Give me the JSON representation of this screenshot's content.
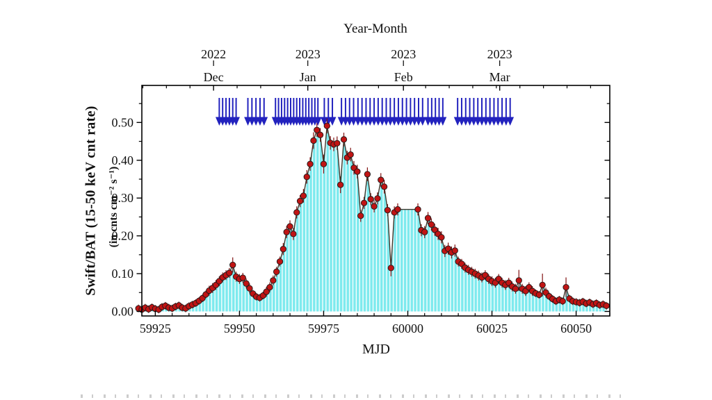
{
  "chart_data": {
    "type": "line",
    "title_top": "Year-Month",
    "xlabel": "MJD",
    "ylabel_line1": "Swift/BAT (15-50 keV cnt rate)",
    "ylabel_line2": "(in cnts cm⁻² s⁻¹)",
    "xlim": [
      59921,
      60060
    ],
    "ylim": [
      -0.012,
      0.598
    ],
    "grid": "off",
    "legend": "none",
    "x_major_ticks": [
      {
        "v": 59925,
        "label": "59925"
      },
      {
        "v": 59950,
        "label": "59950"
      },
      {
        "v": 59975,
        "label": "59975"
      },
      {
        "v": 60000,
        "label": "60000"
      },
      {
        "v": 60025,
        "label": "60025"
      },
      {
        "v": 60050,
        "label": "60050"
      }
    ],
    "x_minor_step": 5,
    "y_major_ticks": [
      {
        "v": 0.0,
        "label": "0.00"
      },
      {
        "v": 0.1,
        "label": "0.10"
      },
      {
        "v": 0.2,
        "label": "0.20"
      },
      {
        "v": 0.3,
        "label": "0.30"
      },
      {
        "v": 0.4,
        "label": "0.40"
      },
      {
        "v": 0.5,
        "label": "0.50"
      }
    ],
    "y_minor_step": 0.05,
    "top_axis_ticks": [
      {
        "mjd": 59942.3,
        "year": "2022",
        "month": "Dec"
      },
      {
        "mjd": 59970.3,
        "year": "2023",
        "month": "Jan"
      },
      {
        "mjd": 59998.7,
        "year": "2023",
        "month": "Feb"
      },
      {
        "mjd": 60027.3,
        "year": "2023",
        "month": "Mar"
      }
    ],
    "top_minor_anchor": 59921.3,
    "top_minor_step": 7,
    "colors": {
      "area": "#7eeaee",
      "stripe_gap": "#ffffff",
      "line": "#3c362b",
      "point_fill": "#c01414",
      "point_edge": "#1a1a1a",
      "error_bar": "#801111",
      "arrow": "#2222be",
      "axis": "#000000"
    },
    "series": {
      "name": "Swift/BAT daily count rate",
      "mjd": [
        59920,
        59921,
        59922,
        59923,
        59924,
        59925,
        59926,
        59927,
        59928,
        59929,
        59930,
        59931,
        59932,
        59933,
        59934,
        59935,
        59936,
        59937,
        59938,
        59939,
        59940,
        59941,
        59942,
        59943,
        59944,
        59945,
        59946,
        59947,
        59948,
        59949,
        59950,
        59951,
        59952,
        59953,
        59954,
        59955,
        59956,
        59957,
        59958,
        59959,
        59960,
        59961,
        59962,
        59963,
        59964,
        59965,
        59966,
        59967,
        59968,
        59969,
        59970,
        59971,
        59972,
        59973,
        59974,
        59975,
        59976,
        59977,
        59978,
        59979,
        59980,
        59981,
        59982,
        59983,
        59984,
        59985,
        59986,
        59987,
        59988,
        59989,
        59990,
        59991,
        59992,
        59993,
        59994,
        59995,
        59996,
        59997,
        60003,
        60004,
        60005,
        60006,
        60007,
        60008,
        60009,
        60010,
        60011,
        60012,
        60013,
        60014,
        60015,
        60016,
        60017,
        60018,
        60019,
        60020,
        60021,
        60022,
        60023,
        60024,
        60025,
        60026,
        60027,
        60028,
        60029,
        60030,
        60031,
        60032,
        60033,
        60034,
        60035,
        60036,
        60037,
        60038,
        60039,
        60040,
        60041,
        60042,
        60043,
        60044,
        60045,
        60046,
        60047,
        60048,
        60049,
        60050,
        60051,
        60052,
        60053,
        60054,
        60055,
        60056,
        60057,
        60058,
        60059
      ],
      "rate": [
        0.008,
        0.005,
        0.01,
        0.006,
        0.011,
        0.007,
        0.005,
        0.012,
        0.015,
        0.01,
        0.008,
        0.013,
        0.016,
        0.01,
        0.008,
        0.014,
        0.018,
        0.022,
        0.028,
        0.035,
        0.045,
        0.055,
        0.062,
        0.07,
        0.08,
        0.09,
        0.096,
        0.102,
        0.123,
        0.092,
        0.086,
        0.089,
        0.074,
        0.061,
        0.047,
        0.039,
        0.036,
        0.042,
        0.052,
        0.064,
        0.082,
        0.105,
        0.132,
        0.165,
        0.21,
        0.225,
        0.205,
        0.262,
        0.292,
        0.306,
        0.356,
        0.39,
        0.452,
        0.48,
        0.467,
        0.39,
        0.491,
        0.446,
        0.442,
        0.445,
        0.335,
        0.455,
        0.407,
        0.415,
        0.38,
        0.37,
        0.253,
        0.287,
        0.363,
        0.297,
        0.278,
        0.299,
        0.348,
        0.33,
        0.268,
        0.115,
        0.262,
        0.27,
        0.27,
        0.215,
        0.21,
        0.247,
        0.23,
        0.216,
        0.205,
        0.196,
        0.16,
        0.166,
        0.156,
        0.161,
        0.132,
        0.126,
        0.116,
        0.11,
        0.105,
        0.1,
        0.095,
        0.09,
        0.096,
        0.086,
        0.08,
        0.076,
        0.086,
        0.076,
        0.07,
        0.076,
        0.066,
        0.06,
        0.082,
        0.06,
        0.054,
        0.064,
        0.054,
        0.048,
        0.044,
        0.07,
        0.05,
        0.04,
        0.033,
        0.027,
        0.031,
        0.027,
        0.064,
        0.034,
        0.027,
        0.025,
        0.023,
        0.026,
        0.021,
        0.024,
        0.019,
        0.022,
        0.017,
        0.019,
        0.015
      ],
      "err": [
        0.01,
        0.01,
        0.01,
        0.01,
        0.01,
        0.01,
        0.01,
        0.01,
        0.01,
        0.01,
        0.01,
        0.01,
        0.01,
        0.01,
        0.01,
        0.01,
        0.01,
        0.01,
        0.01,
        0.01,
        0.01,
        0.013,
        0.013,
        0.013,
        0.013,
        0.013,
        0.013,
        0.013,
        0.02,
        0.013,
        0.013,
        0.013,
        0.013,
        0.013,
        0.01,
        0.01,
        0.01,
        0.01,
        0.013,
        0.013,
        0.013,
        0.013,
        0.013,
        0.016,
        0.016,
        0.016,
        0.016,
        0.016,
        0.016,
        0.018,
        0.018,
        0.018,
        0.022,
        0.018,
        0.018,
        0.025,
        0.02,
        0.018,
        0.018,
        0.018,
        0.022,
        0.018,
        0.018,
        0.018,
        0.018,
        0.018,
        0.016,
        0.016,
        0.018,
        0.016,
        0.016,
        0.016,
        0.018,
        0.018,
        0.016,
        0.022,
        0.016,
        0.016,
        0.016,
        0.016,
        0.016,
        0.016,
        0.016,
        0.016,
        0.016,
        0.016,
        0.016,
        0.016,
        0.016,
        0.016,
        0.013,
        0.013,
        0.013,
        0.013,
        0.013,
        0.013,
        0.013,
        0.013,
        0.013,
        0.013,
        0.013,
        0.013,
        0.013,
        0.013,
        0.013,
        0.013,
        0.013,
        0.013,
        0.028,
        0.013,
        0.013,
        0.013,
        0.013,
        0.01,
        0.01,
        0.03,
        0.013,
        0.01,
        0.01,
        0.01,
        0.01,
        0.01,
        0.026,
        0.01,
        0.01,
        0.01,
        0.01,
        0.01,
        0.01,
        0.01,
        0.01,
        0.01,
        0.01,
        0.01,
        0.01
      ]
    },
    "arrows_mjd": [
      59944,
      59945,
      59946,
      59947,
      59948,
      59949,
      59952.5,
      59953.7,
      59954.9,
      59956.1,
      59957.3,
      59960.7,
      59961.6,
      59962.5,
      59963.4,
      59964.3,
      59965.2,
      59966.1,
      59967,
      59967.9,
      59968.8,
      59969.7,
      59970.6,
      59971.5,
      59972.4,
      59973.3,
      59975.2,
      59976.4,
      59977.6,
      59980.3,
      59981.5,
      59982.7,
      59983.9,
      59985.2,
      59986.4,
      59987.6,
      59988.8,
      59990,
      59991.2,
      59992.4,
      59993.6,
      59994.8,
      59996,
      59997.2,
      59998.4,
      59999.6,
      60000.8,
      60002,
      60003.2,
      60004.4,
      60006,
      60007.1,
      60008.2,
      60009.3,
      60010.4,
      60014.8,
      60016,
      60017.2,
      60018.4,
      60019.6,
      60020.8,
      60022,
      60023.2,
      60024.4,
      60025.6,
      60026.8,
      60028,
      60029.2,
      60030.4
    ]
  }
}
